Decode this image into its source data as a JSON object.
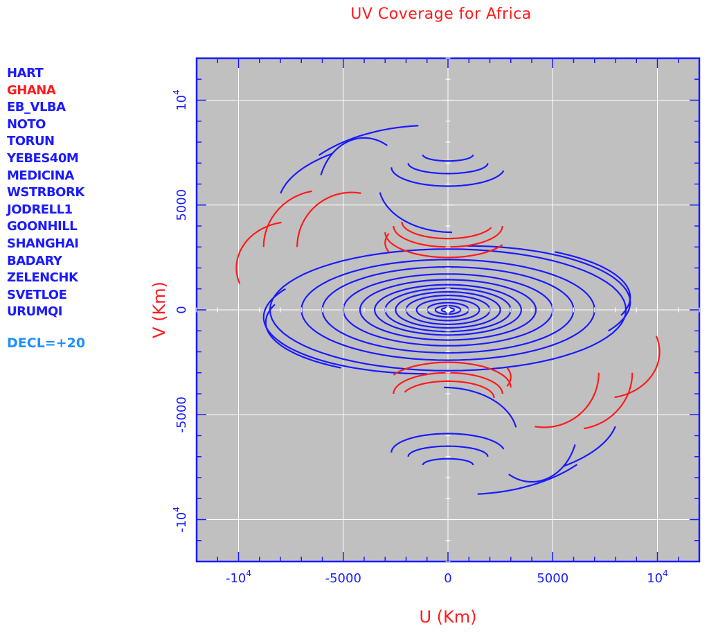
{
  "chart_data": {
    "type": "scatter",
    "title": "UV Coverage for Africa",
    "xlabel": "U (Km)",
    "ylabel": "V (Km)",
    "xlim": [
      -12000,
      12000
    ],
    "ylim": [
      -12000,
      12000
    ],
    "xticks": [
      "-10",
      "-5000",
      "0",
      "5000",
      "10"
    ],
    "xtick_values": [
      -10000,
      -5000,
      0,
      5000,
      10000
    ],
    "yticks": [
      "-10",
      "-5000",
      "0",
      "5000",
      "10"
    ],
    "ytick_values": [
      -10000,
      -5000,
      0,
      5000,
      10000
    ],
    "tick_exponent": "4",
    "grid": true,
    "series": [
      {
        "name": "HART",
        "color": "#1a1aff"
      },
      {
        "name": "GHANA",
        "color": "#ff1a1a"
      },
      {
        "name": "EB_VLBA",
        "color": "#1a1aff"
      },
      {
        "name": "NOTO",
        "color": "#1a1aff"
      },
      {
        "name": "TORUN",
        "color": "#1a1aff"
      },
      {
        "name": "YEBES40M",
        "color": "#1a1aff"
      },
      {
        "name": "MEDICINA",
        "color": "#1a1aff"
      },
      {
        "name": "WSTRBORK",
        "color": "#1a1aff"
      },
      {
        "name": "JODRELL1",
        "color": "#1a1aff"
      },
      {
        "name": "GOONHILL",
        "color": "#1a1aff"
      },
      {
        "name": "SHANGHAI",
        "color": "#1a1aff"
      },
      {
        "name": "BADARY",
        "color": "#1a1aff"
      },
      {
        "name": "ZELENCHK",
        "color": "#1a1aff"
      },
      {
        "name": "SVETLOE",
        "color": "#1a1aff"
      },
      {
        "name": "URUMQI",
        "color": "#1a1aff"
      }
    ],
    "annotation": "DECL=+20",
    "colors": {
      "blue": "#1a1aff",
      "red": "#ff1a1a",
      "plot_bg": "#c0c0c0",
      "annotation": "#1e90ff"
    },
    "tracks": [
      {
        "c": "blue",
        "cx": 0,
        "cy": 0,
        "rx": 1000,
        "ry": 340,
        "a0": 0,
        "a1": 360
      },
      {
        "c": "blue",
        "cx": 0,
        "cy": 0,
        "rx": 1500,
        "ry": 510,
        "a0": 0,
        "a1": 360
      },
      {
        "c": "blue",
        "cx": 0,
        "cy": 0,
        "rx": 2000,
        "ry": 690,
        "a0": 0,
        "a1": 360
      },
      {
        "c": "blue",
        "cx": 0,
        "cy": 0,
        "rx": 2500,
        "ry": 860,
        "a0": 0,
        "a1": 360
      },
      {
        "c": "blue",
        "cx": 0,
        "cy": 0,
        "rx": 3000,
        "ry": 1030,
        "a0": 0,
        "a1": 360
      },
      {
        "c": "blue",
        "cx": 0,
        "cy": 0,
        "rx": 3500,
        "ry": 1200,
        "a0": 0,
        "a1": 360
      },
      {
        "c": "blue",
        "cx": 0,
        "cy": 0,
        "rx": 4200,
        "ry": 1440,
        "a0": 0,
        "a1": 360
      },
      {
        "c": "blue",
        "cx": 0,
        "cy": 0,
        "rx": 5000,
        "ry": 1710,
        "a0": 0,
        "a1": 360
      },
      {
        "c": "blue",
        "cx": 0,
        "cy": 0,
        "rx": 6000,
        "ry": 2050,
        "a0": 0,
        "a1": 360
      },
      {
        "c": "blue",
        "cx": 0,
        "cy": 0,
        "rx": 7000,
        "ry": 2400,
        "a0": 0,
        "a1": 360
      },
      {
        "c": "blue",
        "cx": 0,
        "cy": 0,
        "rx": 8500,
        "ry": 2900,
        "a0": 0,
        "a1": 360
      },
      {
        "c": "blue",
        "cx": 900,
        "cy": 350,
        "rx": 7800,
        "ry": 2700,
        "a0": -30,
        "a1": 90
      },
      {
        "c": "blue",
        "cx": -1000,
        "cy": -350,
        "rx": 7800,
        "ry": 2700,
        "a0": 150,
        "a1": 270
      },
      {
        "c": "blue",
        "cx": 1500,
        "cy": 600,
        "rx": 7200,
        "ry": 2500,
        "a0": -20,
        "a1": 60
      },
      {
        "c": "blue",
        "cx": -1500,
        "cy": -600,
        "rx": 7200,
        "ry": 2500,
        "a0": 160,
        "a1": 240
      },
      {
        "c": "blue",
        "cx": 0,
        "cy": 0,
        "rx": 600,
        "ry": 200,
        "a0": 0,
        "a1": 360
      },
      {
        "c": "blue",
        "cx": 0,
        "cy": 0,
        "rx": 300,
        "ry": 100,
        "a0": 0,
        "a1": 360
      },
      {
        "c": "blue",
        "cx": 0,
        "cy": 7400,
        "rx": 1200,
        "ry": 300,
        "a0": 180,
        "a1": 360
      },
      {
        "c": "blue",
        "cx": 0,
        "cy": 7000,
        "rx": 1900,
        "ry": 500,
        "a0": 180,
        "a1": 360
      },
      {
        "c": "blue",
        "cx": 0,
        "cy": 6800,
        "rx": 2700,
        "ry": 900,
        "a0": 180,
        "a1": 350
      },
      {
        "c": "blue",
        "cx": 200,
        "cy": 6000,
        "rx": 3500,
        "ry": 2300,
        "a0": 190,
        "a1": 270
      },
      {
        "c": "blue",
        "cx": -800,
        "cy": 4800,
        "rx": 7000,
        "ry": 4000,
        "a0": 95,
        "a1": 140
      },
      {
        "c": "blue",
        "cx": -900,
        "cy": 5000,
        "rx": 7200,
        "ry": 3200,
        "a0": 130,
        "a1": 170
      },
      {
        "c": "blue",
        "cx": -4000,
        "cy": 5500,
        "rx": 2200,
        "ry": 2700,
        "a0": 60,
        "a1": 160
      },
      {
        "c": "blue",
        "cx": 0,
        "cy": -7400,
        "rx": 1200,
        "ry": 300,
        "a0": 0,
        "a1": 180
      },
      {
        "c": "blue",
        "cx": 0,
        "cy": -7000,
        "rx": 1900,
        "ry": 500,
        "a0": 0,
        "a1": 180
      },
      {
        "c": "blue",
        "cx": 0,
        "cy": -6800,
        "rx": 2700,
        "ry": 900,
        "a0": 10,
        "a1": 180
      },
      {
        "c": "blue",
        "cx": -200,
        "cy": -6000,
        "rx": 3500,
        "ry": 2300,
        "a0": 10,
        "a1": 90
      },
      {
        "c": "blue",
        "cx": 800,
        "cy": -4800,
        "rx": 7000,
        "ry": 4000,
        "a0": 275,
        "a1": 320
      },
      {
        "c": "blue",
        "cx": 900,
        "cy": -5000,
        "rx": 7200,
        "ry": 3200,
        "a0": 310,
        "a1": 350
      },
      {
        "c": "blue",
        "cx": 4000,
        "cy": -5500,
        "rx": 2200,
        "ry": 2700,
        "a0": 240,
        "a1": 340
      },
      {
        "c": "red",
        "cx": 0,
        "cy": 4200,
        "rx": 2200,
        "ry": 800,
        "a0": 180,
        "a1": 340
      },
      {
        "c": "red",
        "cx": 0,
        "cy": 4000,
        "rx": 2600,
        "ry": 1000,
        "a0": 180,
        "a1": 360
      },
      {
        "c": "red",
        "cx": 0,
        "cy": 3700,
        "rx": 3000,
        "ry": 1200,
        "a0": 180,
        "a1": 330
      },
      {
        "c": "red",
        "cx": 0,
        "cy": 3200,
        "rx": 3000,
        "ry": 1300,
        "a0": 160,
        "a1": 200
      },
      {
        "c": "red",
        "cx": -4600,
        "cy": 3000,
        "rx": 2600,
        "ry": 2600,
        "a0": 80,
        "a1": 180
      },
      {
        "c": "red",
        "cx": -6000,
        "cy": 3000,
        "rx": 2800,
        "ry": 2700,
        "a0": 100,
        "a1": 180
      },
      {
        "c": "red",
        "cx": -7500,
        "cy": 2000,
        "rx": 2600,
        "ry": 2200,
        "a0": 100,
        "a1": 200
      },
      {
        "c": "red",
        "cx": 0,
        "cy": -4200,
        "rx": 2200,
        "ry": 800,
        "a0": 0,
        "a1": 160
      },
      {
        "c": "red",
        "cx": 0,
        "cy": -4000,
        "rx": 2600,
        "ry": 1000,
        "a0": 0,
        "a1": 180
      },
      {
        "c": "red",
        "cx": 0,
        "cy": -3700,
        "rx": 3000,
        "ry": 1200,
        "a0": 0,
        "a1": 150
      },
      {
        "c": "red",
        "cx": 0,
        "cy": -3200,
        "rx": 3000,
        "ry": 1300,
        "a0": 340,
        "a1": 380
      },
      {
        "c": "red",
        "cx": 4600,
        "cy": -3000,
        "rx": 2600,
        "ry": 2600,
        "a0": 260,
        "a1": 360
      },
      {
        "c": "red",
        "cx": 6000,
        "cy": -3000,
        "rx": 2800,
        "ry": 2700,
        "a0": 280,
        "a1": 360
      },
      {
        "c": "red",
        "cx": 7500,
        "cy": -2000,
        "rx": 2600,
        "ry": 2200,
        "a0": 280,
        "a1": 380
      }
    ]
  }
}
